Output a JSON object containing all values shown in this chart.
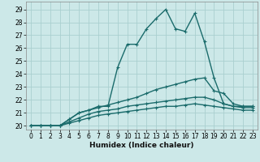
{
  "title": "",
  "xlabel": "Humidex (Indice chaleur)",
  "ylabel": "",
  "bg_color": "#cce8e8",
  "grid_color": "#aacfcf",
  "line_color": "#1a6b6b",
  "xlim": [
    -0.5,
    23.5
  ],
  "ylim": [
    19.7,
    29.6
  ],
  "xticks": [
    0,
    1,
    2,
    3,
    4,
    5,
    6,
    7,
    8,
    9,
    10,
    11,
    12,
    13,
    14,
    15,
    16,
    17,
    18,
    19,
    20,
    21,
    22,
    23
  ],
  "yticks": [
    20,
    21,
    22,
    23,
    24,
    25,
    26,
    27,
    28,
    29
  ],
  "series": [
    [
      20.0,
      20.0,
      20.0,
      20.0,
      20.5,
      21.0,
      21.2,
      21.5,
      21.5,
      24.5,
      26.3,
      26.3,
      27.5,
      28.3,
      29.0,
      27.5,
      27.3,
      28.7,
      26.5,
      23.7,
      21.7,
      21.5,
      21.5,
      21.5
    ],
    [
      20.0,
      20.0,
      20.0,
      20.0,
      20.5,
      21.0,
      21.2,
      21.4,
      21.6,
      21.8,
      22.0,
      22.2,
      22.5,
      22.8,
      23.0,
      23.2,
      23.4,
      23.6,
      23.7,
      22.7,
      22.5,
      21.7,
      21.5,
      21.5
    ],
    [
      20.0,
      20.0,
      20.0,
      20.0,
      20.3,
      20.6,
      20.9,
      21.1,
      21.2,
      21.3,
      21.5,
      21.6,
      21.7,
      21.8,
      21.9,
      22.0,
      22.1,
      22.2,
      22.2,
      22.0,
      21.7,
      21.5,
      21.4,
      21.4
    ],
    [
      20.0,
      20.0,
      20.0,
      20.0,
      20.2,
      20.4,
      20.6,
      20.8,
      20.9,
      21.0,
      21.1,
      21.2,
      21.3,
      21.4,
      21.5,
      21.5,
      21.6,
      21.7,
      21.6,
      21.5,
      21.4,
      21.3,
      21.2,
      21.2
    ]
  ],
  "xlabel_fontsize": 6.5,
  "tick_fontsize": 5.5
}
